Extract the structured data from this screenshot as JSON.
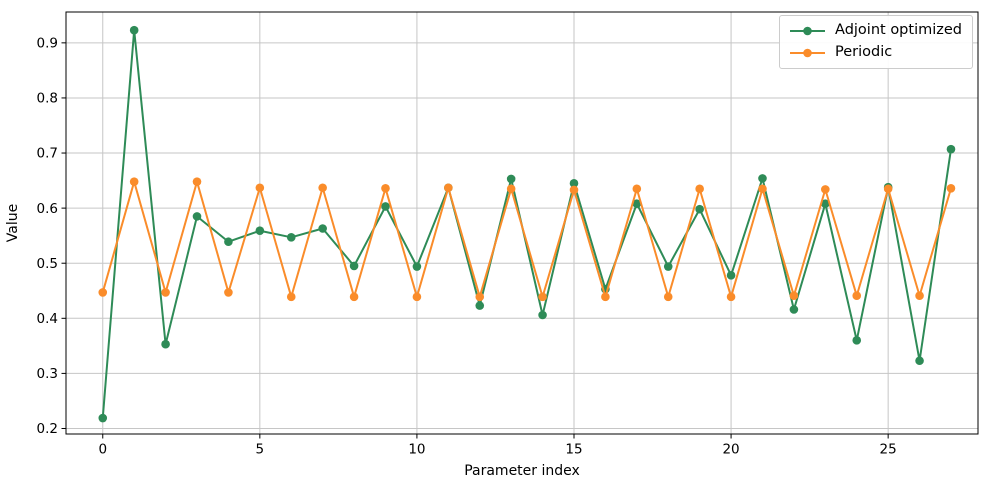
{
  "chart_data": {
    "type": "line",
    "title": "",
    "xlabel": "Parameter index",
    "ylabel": "Value",
    "x": [
      0,
      1,
      2,
      3,
      4,
      5,
      6,
      7,
      8,
      9,
      10,
      11,
      12,
      13,
      14,
      15,
      16,
      17,
      18,
      19,
      20,
      21,
      22,
      23,
      24,
      25,
      26,
      27
    ],
    "series": [
      {
        "name": "Adjoint optimized",
        "color": "#2e8b57",
        "marker": "circle",
        "values": [
          0.219,
          0.923,
          0.353,
          0.585,
          0.539,
          0.559,
          0.547,
          0.563,
          0.495,
          0.603,
          0.494,
          0.637,
          0.423,
          0.653,
          0.406,
          0.645,
          0.453,
          0.608,
          0.494,
          0.598,
          0.478,
          0.654,
          0.416,
          0.608,
          0.36,
          0.638,
          0.323,
          0.707
        ]
      },
      {
        "name": "Periodic",
        "color": "#fa8c2a",
        "marker": "circle",
        "values": [
          0.447,
          0.648,
          0.447,
          0.648,
          0.447,
          0.637,
          0.439,
          0.637,
          0.439,
          0.636,
          0.439,
          0.637,
          0.439,
          0.635,
          0.439,
          0.633,
          0.439,
          0.635,
          0.439,
          0.635,
          0.439,
          0.635,
          0.441,
          0.634,
          0.441,
          0.635,
          0.441,
          0.636
        ]
      }
    ],
    "xticks": [
      0,
      5,
      10,
      15,
      20,
      25
    ],
    "xtick_labels": [
      "0",
      "5",
      "10",
      "15",
      "20",
      "25"
    ],
    "yticks": [
      0.2,
      0.3,
      0.4,
      0.5,
      0.6,
      0.7,
      0.8,
      0.9
    ],
    "ytick_labels": [
      "0.2",
      "0.3",
      "0.4",
      "0.5",
      "0.6",
      "0.7",
      "0.8",
      "0.9"
    ],
    "xlim": [
      -1.17,
      27.86
    ],
    "ylim": [
      0.19,
      0.956
    ],
    "grid": true,
    "grid_color": "#c6c6c6",
    "legend_position": "upper right"
  }
}
